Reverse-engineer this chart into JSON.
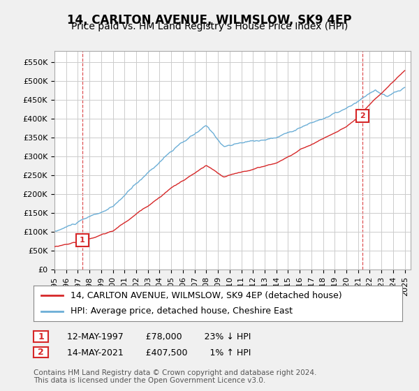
{
  "title": "14, CARLTON AVENUE, WILMSLOW, SK9 4EP",
  "subtitle": "Price paid vs. HM Land Registry's House Price Index (HPI)",
  "ylim": [
    0,
    580000
  ],
  "yticks": [
    0,
    50000,
    100000,
    150000,
    200000,
    250000,
    300000,
    350000,
    400000,
    450000,
    500000,
    550000
  ],
  "xlim_start": 1995.0,
  "xlim_end": 2025.5,
  "sale1_date_x": 1997.37,
  "sale1_price": 78000,
  "sale1_label": "1",
  "sale1_text": "12-MAY-1997        £78,000        23% ↓ HPI",
  "sale2_date_x": 2021.37,
  "sale2_price": 407500,
  "sale2_label": "2",
  "sale2_text": "14-MAY-2021        £407,500        1% ↑ HPI",
  "legend_line1": "14, CARLTON AVENUE, WILMSLOW, SK9 4EP (detached house)",
  "legend_line2": "HPI: Average price, detached house, Cheshire East",
  "footer1": "Contains HM Land Registry data © Crown copyright and database right 2024.",
  "footer2": "This data is licensed under the Open Government Licence v3.0.",
  "hpi_color": "#6baed6",
  "price_color": "#d62728",
  "sale_marker_color": "#d62728",
  "sale_vline_color": "#d62728",
  "background_color": "#f0f0f0",
  "plot_bg_color": "#ffffff",
  "grid_color": "#cccccc",
  "title_fontsize": 12,
  "subtitle_fontsize": 10,
  "tick_fontsize": 8,
  "legend_fontsize": 9,
  "footer_fontsize": 7.5
}
